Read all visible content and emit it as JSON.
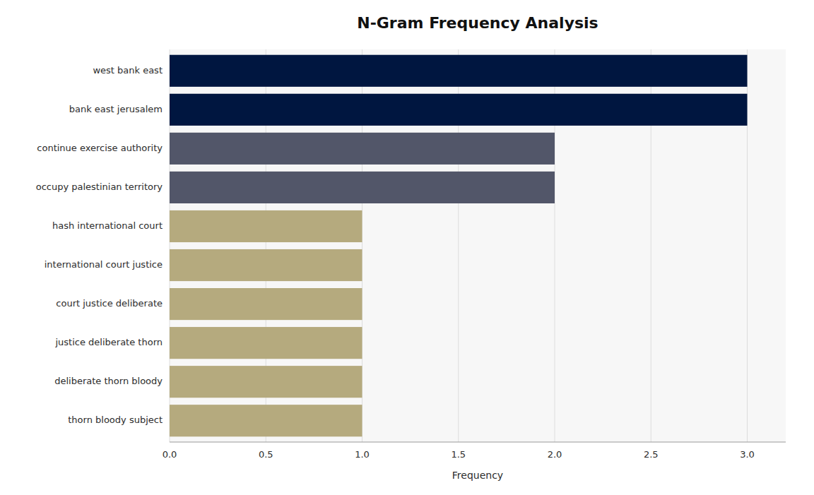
{
  "chart_data": {
    "type": "bar",
    "orientation": "horizontal",
    "title": "N-Gram Frequency Analysis",
    "xlabel": "Frequency",
    "categories": [
      "thorn bloody subject",
      "deliberate thorn bloody",
      "justice deliberate thorn",
      "court justice deliberate",
      "international court justice",
      "hash international court",
      "occupy palestinian territory",
      "continue exercise authority",
      "bank east jerusalem",
      "west bank east"
    ],
    "values": [
      1,
      1,
      1,
      1,
      1,
      1,
      2,
      2,
      3,
      3
    ],
    "colors": [
      "#b5aa7e",
      "#b5aa7e",
      "#b5aa7e",
      "#b5aa7e",
      "#b5aa7e",
      "#b5aa7e",
      "#525669",
      "#525669",
      "#001640",
      "#001640"
    ],
    "xlim": [
      0,
      3.2
    ],
    "xticks": [
      {
        "value": 0,
        "label": "0.0"
      },
      0.5,
      {
        "value": 1,
        "label": "1.0"
      },
      1.5,
      {
        "value": 2,
        "label": "2.0"
      },
      2.5,
      {
        "value": 3,
        "label": "3.0"
      }
    ],
    "grid": true
  }
}
